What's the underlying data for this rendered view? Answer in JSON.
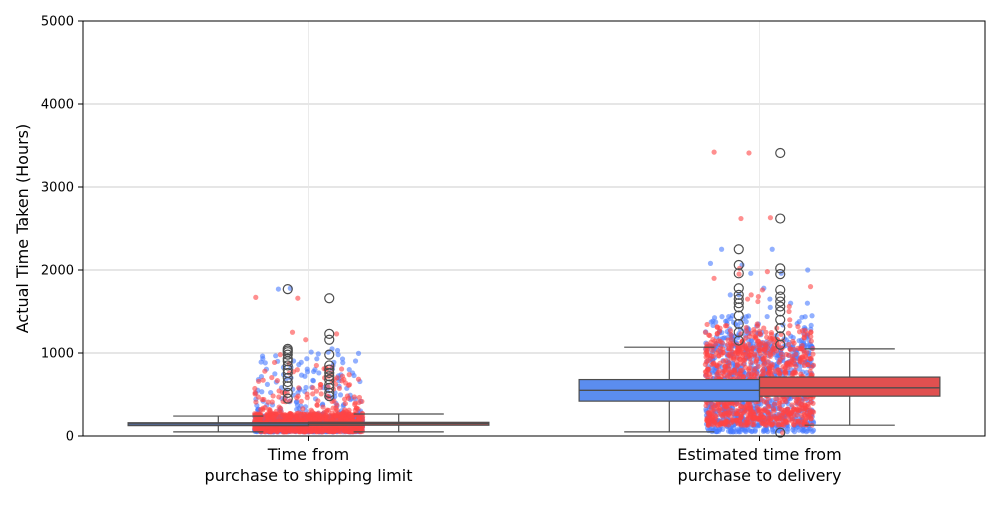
{
  "chart_data": {
    "type": "box",
    "title": "",
    "xlabel": "",
    "ylabel": "Actual Time Taken (Hours)",
    "ylim": [
      0,
      5000
    ],
    "yticks": [
      0,
      1000,
      2000,
      3000,
      4000,
      5000
    ],
    "grid": true,
    "legend": "none",
    "categories": [
      {
        "line1": "Time from",
        "line2": "purchase to shipping limit"
      },
      {
        "line1": "Estimated time from",
        "line2": "purchase to delivery"
      }
    ],
    "hue_colors": [
      "#5b8def",
      "#e05050"
    ],
    "strip_colors": [
      "#4a7bff",
      "#ff4545"
    ],
    "boxes": [
      {
        "category": 0,
        "hue": 0,
        "q1": 125,
        "median": 145,
        "q3": 160,
        "whisker_low": 50,
        "whisker_high": 240,
        "strip_max": 1060,
        "outliers": [
          450,
          520,
          600,
          650,
          700,
          760,
          800,
          850,
          900,
          930,
          980,
          1010,
          1030,
          1050,
          1770
        ]
      },
      {
        "category": 0,
        "hue": 1,
        "q1": 130,
        "median": 150,
        "q3": 165,
        "whisker_low": 50,
        "whisker_high": 265,
        "strip_max": 890,
        "outliers": [
          480,
          520,
          580,
          620,
          680,
          720,
          760,
          800,
          850,
          980,
          1160,
          1230,
          1660
        ]
      },
      {
        "category": 1,
        "hue": 0,
        "q1": 420,
        "median": 550,
        "q3": 680,
        "whisker_low": 50,
        "whisker_high": 1070,
        "strip_max": 1450,
        "outliers": [
          1150,
          1250,
          1350,
          1450,
          1550,
          1600,
          1650,
          1700,
          1780,
          1960,
          2060,
          2250
        ]
      },
      {
        "category": 1,
        "hue": 1,
        "q1": 480,
        "median": 580,
        "q3": 710,
        "whisker_low": 130,
        "whisker_high": 1050,
        "strip_max": 1350,
        "outliers": [
          40,
          1100,
          1200,
          1300,
          1400,
          1500,
          1560,
          1620,
          1680,
          1760,
          1950,
          2020,
          2620,
          3410
        ]
      }
    ],
    "strip_extra_points": [
      {
        "category": 0,
        "hue": 0,
        "values": [
          1780
        ]
      },
      {
        "category": 0,
        "hue": 1,
        "values": [
          1670,
          1250
        ]
      },
      {
        "category": 1,
        "hue": 0,
        "values": [
          2250,
          1960,
          2000,
          2080,
          1600,
          1700
        ]
      },
      {
        "category": 1,
        "hue": 1,
        "values": [
          2630,
          3420,
          1980,
          1900,
          1800,
          1700,
          1650
        ]
      }
    ]
  }
}
